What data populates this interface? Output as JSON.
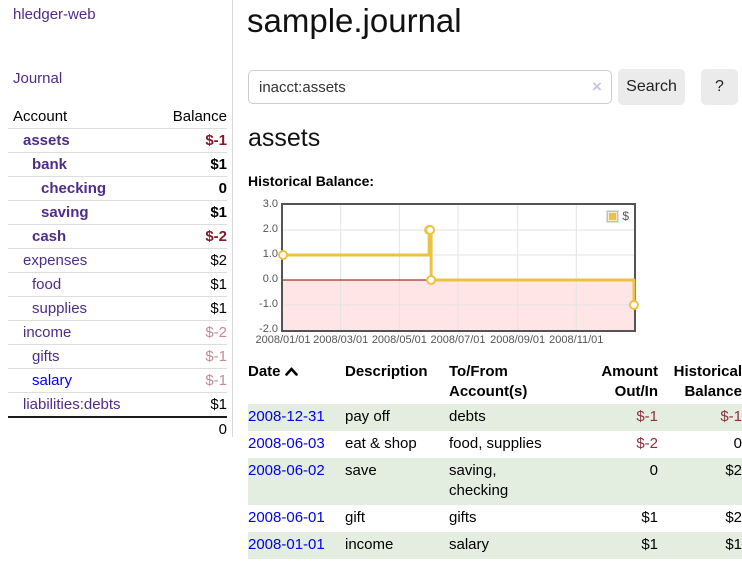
{
  "app": {
    "brand": "hledger-web",
    "nav": {
      "journal": "Journal"
    }
  },
  "colors": {
    "link_purple": "#4f2b8c",
    "link_blue": "#0000ee",
    "negative_strong": "#801b26",
    "negative_soft": "#c48b92",
    "negative_table": "#8e2e3c",
    "row_stripe_green": "#e3eee1",
    "series_gold": "#edc240",
    "zero_line_red": "#8b0000",
    "negative_region_pink": "#ffe5e5",
    "chart_border": "#545454"
  },
  "sidebar": {
    "header": {
      "account": "Account",
      "balance": "Balance"
    },
    "accounts": [
      {
        "name": "assets",
        "balance": "$-1",
        "indent": 1,
        "bold": true,
        "neg": "strong"
      },
      {
        "name": "bank",
        "balance": "$1",
        "indent": 2,
        "bold": true,
        "neg": null
      },
      {
        "name": "checking",
        "balance": "0",
        "indent": 3,
        "bold": true,
        "neg": null
      },
      {
        "name": "saving",
        "balance": "$1",
        "indent": 3,
        "bold": true,
        "neg": null
      },
      {
        "name": "cash",
        "balance": "$-2",
        "indent": 2,
        "bold": true,
        "neg": "strong"
      },
      {
        "name": "expenses",
        "balance": "$2",
        "indent": 1,
        "bold": false,
        "neg": null
      },
      {
        "name": "food",
        "balance": "$1",
        "indent": 2,
        "bold": false,
        "neg": null
      },
      {
        "name": "supplies",
        "balance": "$1",
        "indent": 2,
        "bold": false,
        "neg": null
      },
      {
        "name": "income",
        "balance": "$-2",
        "indent": 1,
        "bold": false,
        "neg": "soft"
      },
      {
        "name": "gifts",
        "balance": "$-1",
        "indent": 2,
        "bold": false,
        "neg": "soft"
      },
      {
        "name": "salary",
        "balance": "$-1",
        "indent": 2,
        "bold": false,
        "neg": "soft",
        "blue": true
      },
      {
        "name": "liabilities:debts",
        "balance": "$1",
        "indent": 1,
        "bold": false,
        "neg": null
      }
    ],
    "total": "0"
  },
  "header": {
    "title": "sample.journal"
  },
  "search": {
    "value": "inacct:assets",
    "clear": "×",
    "button": "Search",
    "help": "?"
  },
  "main": {
    "account_title": "assets",
    "chart_title": "Historical Balance:"
  },
  "chart_data": {
    "type": "line",
    "step": true,
    "title": "Historical Balance:",
    "series": [
      {
        "name": "$",
        "color": "#edc240",
        "points": [
          [
            "2008-01-01",
            1
          ],
          [
            "2008-06-01",
            2
          ],
          [
            "2008-06-02",
            2
          ],
          [
            "2008-06-03",
            0
          ],
          [
            "2008-12-31",
            -1
          ]
        ]
      }
    ],
    "x_range": [
      "2008/01/01",
      "2008/12/31"
    ],
    "x_ticks": [
      "2008/01/01",
      "2008/03/01",
      "2008/05/01",
      "2008/07/01",
      "2008/09/01",
      "2008/11/01"
    ],
    "y_ticks": [
      3.0,
      2.0,
      1.0,
      0.0,
      -1.0,
      -2.0
    ],
    "ylim": [
      -2,
      3
    ],
    "grid": true,
    "legend_position": "top-right",
    "negative_region_shaded": true
  },
  "register": {
    "headers": [
      "Date",
      "Description",
      "To/From Account(s)",
      "Amount Out/In",
      "Historical Balance"
    ],
    "sort": {
      "column": "Date",
      "direction": "ascending"
    },
    "rows": [
      {
        "date": "2008-12-31",
        "description": "pay off",
        "accounts": "debts",
        "amount": "$-1",
        "amount_neg": true,
        "balance": "$-1",
        "balance_neg": true,
        "shade": true
      },
      {
        "date": "2008-06-03",
        "description": "eat & shop",
        "accounts": "food, supplies",
        "amount": "$-2",
        "amount_neg": true,
        "balance": "0",
        "balance_neg": false,
        "shade": false
      },
      {
        "date": "2008-06-02",
        "description": "save",
        "accounts": "saving, checking",
        "amount": "0",
        "amount_neg": false,
        "balance": "$2",
        "balance_neg": false,
        "shade": true
      },
      {
        "date": "2008-06-01",
        "description": "gift",
        "accounts": "gifts",
        "amount": "$1",
        "amount_neg": false,
        "balance": "$2",
        "balance_neg": false,
        "shade": false
      },
      {
        "date": "2008-01-01",
        "description": "income",
        "accounts": "salary",
        "amount": "$1",
        "amount_neg": false,
        "balance": "$1",
        "balance_neg": false,
        "shade": true
      }
    ]
  }
}
